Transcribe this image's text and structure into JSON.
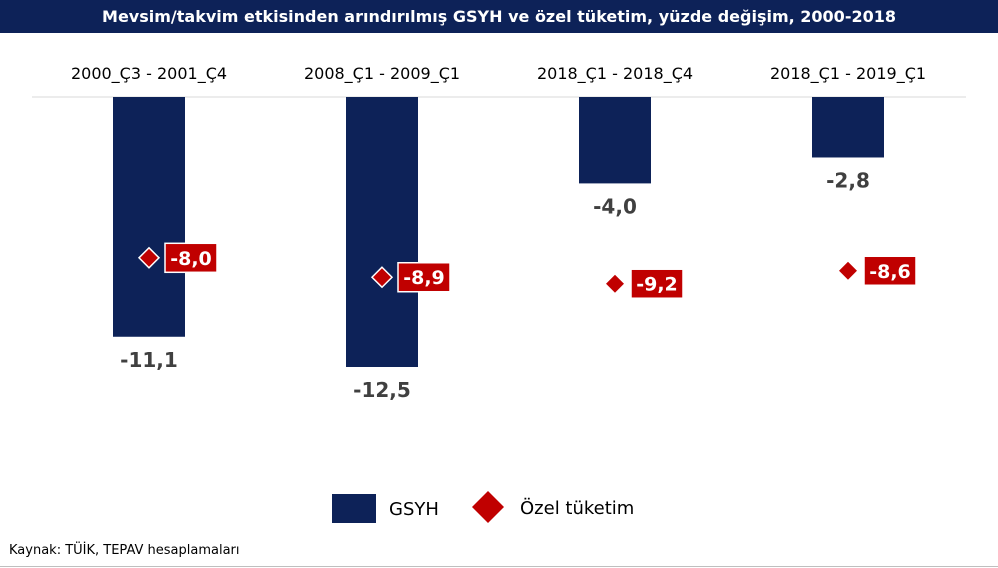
{
  "chart_data": {
    "type": "bar",
    "title": "Mevsim/takvim etkisinden arındırılmış GSYH ve özel tüketim, yüzde değişim, 2000-2018",
    "categories": [
      "2000_Ç3 - 2001_Ç4",
      "2008_Ç1 - 2009_Ç1",
      "2018_Ç1 - 2018_Ç4",
      "2018_Ç1 - 2019_Ç1"
    ],
    "series": [
      {
        "name": "GSYH",
        "kind": "bar",
        "color": "#0d2258",
        "values": [
          -11.1,
          -12.5,
          -4.0,
          -2.8
        ],
        "labels": [
          "-11,1",
          "-12,5",
          "-4,0",
          "-2,8"
        ]
      },
      {
        "name": "Özel tüketim",
        "kind": "diamond",
        "color": "#c00000",
        "values": [
          -8.0,
          -8.9,
          -9.2,
          -8.6
        ],
        "labels": [
          "-8,0",
          "-8,9",
          "-9,2",
          "-8,6"
        ]
      }
    ],
    "xlabel": "",
    "ylabel": "",
    "ylim": [
      -13,
      0
    ],
    "grid": false,
    "legend_position": "bottom-center"
  },
  "source": "Kaynak: TÜİK, TEPAV hesaplamaları"
}
